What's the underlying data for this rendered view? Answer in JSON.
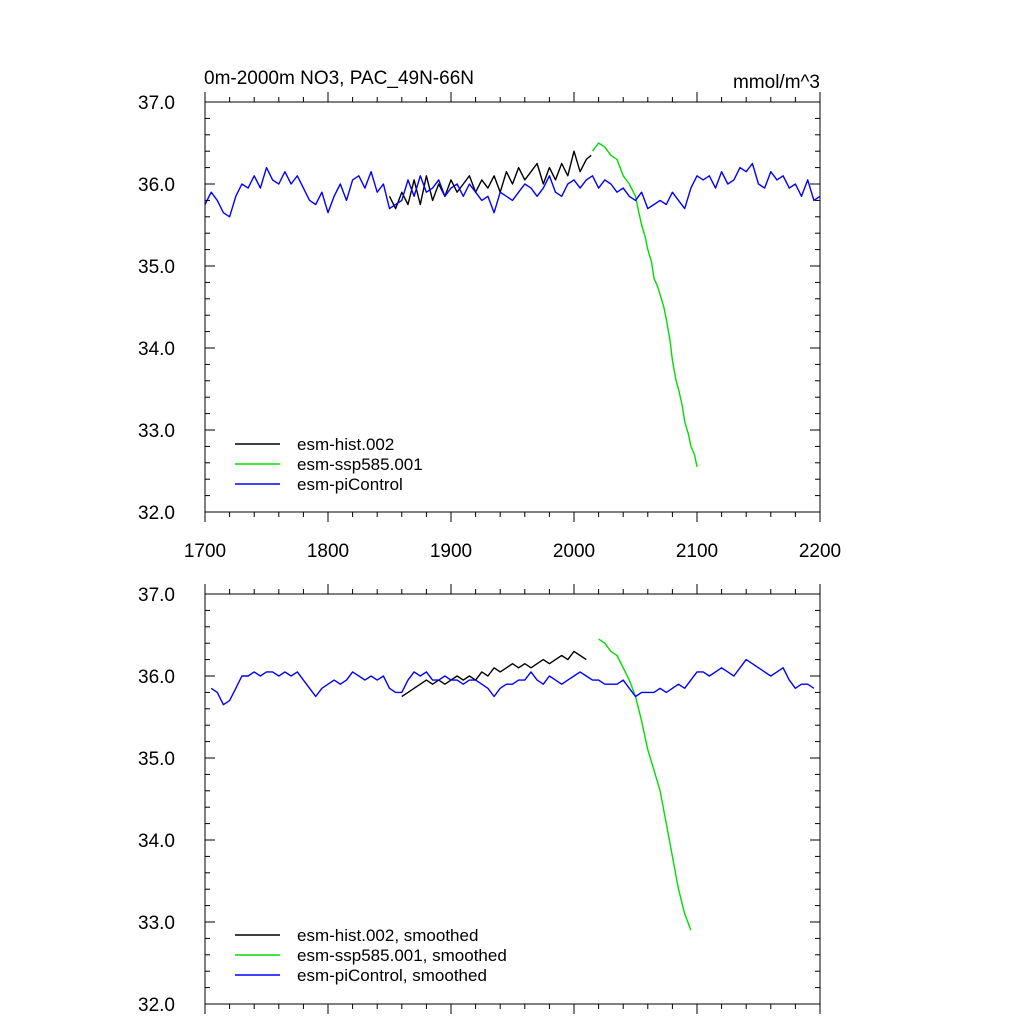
{
  "chart_data": [
    {
      "type": "line",
      "title": "0m-2000m NO3, PAC_49N-66N",
      "units": "mmol/m^3",
      "xlim": [
        1700,
        2200
      ],
      "ylim": [
        32.0,
        37.0
      ],
      "x_ticks": [
        "1700",
        "1800",
        "1900",
        "2000",
        "2100",
        "2200"
      ],
      "y_ticks": [
        "32.0",
        "33.0",
        "34.0",
        "35.0",
        "36.0",
        "37.0"
      ],
      "legend_position": "bottom-left",
      "series": [
        {
          "name": "esm-hist.002",
          "color": "#000000",
          "x": [
            1850,
            1855,
            1860,
            1865,
            1870,
            1875,
            1880,
            1885,
            1890,
            1895,
            1900,
            1905,
            1910,
            1915,
            1920,
            1925,
            1930,
            1935,
            1940,
            1945,
            1950,
            1955,
            1960,
            1965,
            1970,
            1975,
            1980,
            1985,
            1990,
            1995,
            2000,
            2005,
            2010,
            2014
          ],
          "y": [
            35.85,
            35.7,
            35.9,
            35.75,
            36.05,
            35.75,
            36.1,
            35.8,
            36.0,
            35.85,
            36.05,
            35.9,
            36.0,
            36.1,
            35.9,
            36.05,
            35.95,
            36.1,
            35.9,
            36.15,
            36.0,
            36.2,
            36.05,
            36.15,
            36.25,
            36.0,
            36.2,
            36.05,
            36.25,
            36.1,
            36.4,
            36.15,
            36.3,
            36.35
          ]
        },
        {
          "name": "esm-ssp585.001",
          "color": "#00dd00",
          "x": [
            2015,
            2020,
            2025,
            2030,
            2035,
            2040,
            2045,
            2050,
            2052,
            2055,
            2058,
            2060,
            2063,
            2065,
            2068,
            2070,
            2073,
            2075,
            2078,
            2080,
            2083,
            2085,
            2088,
            2090,
            2093,
            2095,
            2098,
            2100
          ],
          "y": [
            36.4,
            36.5,
            36.45,
            36.35,
            36.3,
            36.1,
            36.0,
            35.85,
            35.7,
            35.5,
            35.35,
            35.2,
            35.05,
            34.85,
            34.75,
            34.65,
            34.5,
            34.35,
            34.1,
            33.85,
            33.6,
            33.5,
            33.3,
            33.1,
            32.95,
            32.8,
            32.7,
            32.55
          ]
        },
        {
          "name": "esm-piControl",
          "color": "#0000ff",
          "x": [
            1700,
            1705,
            1710,
            1715,
            1720,
            1725,
            1730,
            1735,
            1740,
            1745,
            1750,
            1755,
            1760,
            1765,
            1770,
            1775,
            1780,
            1785,
            1790,
            1795,
            1800,
            1805,
            1810,
            1815,
            1820,
            1825,
            1830,
            1835,
            1840,
            1845,
            1850,
            1855,
            1860,
            1865,
            1870,
            1875,
            1880,
            1885,
            1890,
            1895,
            1900,
            1905,
            1910,
            1915,
            1920,
            1925,
            1930,
            1935,
            1940,
            1945,
            1950,
            1955,
            1960,
            1965,
            1970,
            1975,
            1980,
            1985,
            1990,
            1995,
            2000,
            2005,
            2010,
            2015,
            2020,
            2025,
            2030,
            2035,
            2040,
            2045,
            2050,
            2055,
            2060,
            2065,
            2070,
            2075,
            2080,
            2085,
            2090,
            2095,
            2100,
            2105,
            2110,
            2115,
            2120,
            2125,
            2130,
            2135,
            2140,
            2145,
            2150,
            2155,
            2160,
            2165,
            2170,
            2175,
            2180,
            2185,
            2190,
            2195,
            2200
          ],
          "y": [
            35.75,
            35.9,
            35.8,
            35.65,
            35.6,
            35.85,
            36.0,
            35.95,
            36.1,
            35.95,
            36.2,
            36.05,
            36.0,
            36.15,
            36.0,
            36.1,
            35.95,
            35.8,
            35.75,
            35.9,
            35.65,
            35.85,
            36.0,
            35.8,
            36.05,
            36.1,
            35.95,
            36.15,
            35.9,
            36.0,
            35.7,
            35.75,
            35.8,
            36.05,
            35.85,
            36.1,
            35.9,
            35.95,
            36.05,
            35.85,
            35.95,
            36.0,
            35.85,
            36.0,
            35.9,
            35.8,
            35.85,
            35.65,
            35.9,
            35.85,
            35.8,
            35.9,
            36.0,
            35.95,
            35.85,
            35.95,
            36.1,
            35.9,
            35.85,
            36.0,
            36.05,
            35.95,
            36.05,
            36.1,
            35.95,
            36.05,
            36.0,
            35.9,
            35.95,
            35.85,
            35.8,
            35.9,
            35.7,
            35.75,
            35.8,
            35.75,
            35.9,
            35.8,
            35.7,
            35.95,
            36.1,
            36.05,
            36.1,
            35.95,
            36.15,
            36.0,
            36.05,
            36.2,
            36.15,
            36.25,
            36.0,
            35.95,
            36.15,
            36.05,
            36.1,
            35.95,
            36.0,
            35.85,
            36.05,
            35.8,
            35.85
          ]
        }
      ]
    },
    {
      "type": "line",
      "title": "",
      "units": "",
      "xlim": [
        1700,
        2200
      ],
      "ylim": [
        32.0,
        37.0
      ],
      "y_ticks": [
        "32.0",
        "33.0",
        "34.0",
        "35.0",
        "36.0",
        "37.0"
      ],
      "legend_position": "bottom-left",
      "series": [
        {
          "name": "esm-hist.002, smoothed",
          "color": "#000000",
          "x": [
            1860,
            1865,
            1870,
            1875,
            1880,
            1885,
            1890,
            1895,
            1900,
            1905,
            1910,
            1915,
            1920,
            1925,
            1930,
            1935,
            1940,
            1945,
            1950,
            1955,
            1960,
            1965,
            1970,
            1975,
            1980,
            1985,
            1990,
            1995,
            2000,
            2005,
            2010
          ],
          "y": [
            35.75,
            35.8,
            35.85,
            35.9,
            35.95,
            35.9,
            35.95,
            35.9,
            35.95,
            36.0,
            35.95,
            36.0,
            35.95,
            36.05,
            36.0,
            36.1,
            36.05,
            36.1,
            36.15,
            36.1,
            36.15,
            36.1,
            36.15,
            36.2,
            36.15,
            36.2,
            36.25,
            36.2,
            36.3,
            36.25,
            36.2
          ]
        },
        {
          "name": "esm-ssp585.001, smoothed",
          "color": "#00dd00",
          "x": [
            2020,
            2025,
            2030,
            2035,
            2040,
            2045,
            2050,
            2055,
            2060,
            2065,
            2070,
            2075,
            2080,
            2085,
            2090,
            2095
          ],
          "y": [
            36.45,
            36.4,
            36.3,
            36.25,
            36.1,
            35.95,
            35.75,
            35.45,
            35.1,
            34.85,
            34.6,
            34.2,
            33.8,
            33.4,
            33.1,
            32.9
          ]
        },
        {
          "name": "esm-piControl, smoothed",
          "color": "#0000ff",
          "x": [
            1705,
            1710,
            1715,
            1720,
            1725,
            1730,
            1735,
            1740,
            1745,
            1750,
            1755,
            1760,
            1765,
            1770,
            1775,
            1780,
            1785,
            1790,
            1795,
            1800,
            1805,
            1810,
            1815,
            1820,
            1825,
            1830,
            1835,
            1840,
            1845,
            1850,
            1855,
            1860,
            1865,
            1870,
            1875,
            1880,
            1885,
            1890,
            1895,
            1900,
            1905,
            1910,
            1915,
            1920,
            1925,
            1930,
            1935,
            1940,
            1945,
            1950,
            1955,
            1960,
            1965,
            1970,
            1975,
            1980,
            1985,
            1990,
            1995,
            2000,
            2005,
            2010,
            2015,
            2020,
            2025,
            2030,
            2035,
            2040,
            2045,
            2050,
            2055,
            2060,
            2065,
            2070,
            2075,
            2080,
            2085,
            2090,
            2095,
            2100,
            2105,
            2110,
            2115,
            2120,
            2125,
            2130,
            2135,
            2140,
            2145,
            2150,
            2155,
            2160,
            2165,
            2170,
            2175,
            2180,
            2185,
            2190,
            2195
          ],
          "y": [
            35.85,
            35.8,
            35.65,
            35.7,
            35.85,
            36.0,
            36.0,
            36.05,
            36.0,
            36.05,
            36.05,
            36.0,
            36.05,
            36.0,
            36.05,
            35.95,
            35.85,
            35.75,
            35.85,
            35.9,
            35.95,
            35.9,
            35.95,
            36.05,
            36.0,
            35.95,
            36.0,
            35.95,
            36.0,
            35.85,
            35.8,
            35.8,
            35.95,
            36.05,
            36.0,
            36.05,
            35.95,
            35.95,
            36.0,
            35.95,
            35.95,
            35.9,
            35.95,
            35.95,
            35.9,
            35.85,
            35.75,
            35.85,
            35.9,
            35.9,
            35.95,
            35.95,
            36.05,
            35.95,
            35.9,
            36.0,
            35.95,
            35.9,
            35.95,
            36.0,
            36.05,
            36.0,
            35.95,
            35.95,
            35.9,
            35.9,
            35.9,
            35.95,
            35.85,
            35.75,
            35.8,
            35.8,
            35.8,
            35.85,
            35.8,
            35.85,
            35.9,
            35.85,
            35.95,
            36.05,
            36.05,
            36.0,
            36.05,
            36.1,
            36.05,
            36.0,
            36.1,
            36.2,
            36.15,
            36.1,
            36.05,
            36.0,
            36.05,
            36.1,
            35.95,
            35.85,
            35.9,
            35.9,
            35.85
          ]
        }
      ]
    }
  ]
}
